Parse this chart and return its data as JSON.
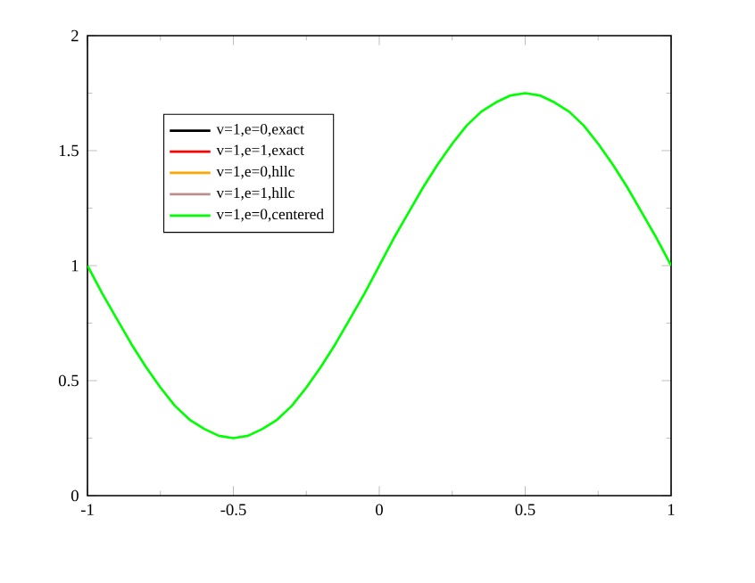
{
  "chart_data": {
    "type": "line",
    "x": [
      -1,
      -0.95,
      -0.9,
      -0.85,
      -0.8,
      -0.75,
      -0.7,
      -0.65,
      -0.6,
      -0.55,
      -0.5,
      -0.45,
      -0.4,
      -0.35,
      -0.3,
      -0.25,
      -0.2,
      -0.15,
      -0.1,
      -0.05,
      0,
      0.05,
      0.1,
      0.15,
      0.2,
      0.25,
      0.3,
      0.35,
      0.4,
      0.45,
      0.5,
      0.55,
      0.6,
      0.65,
      0.7,
      0.75,
      0.8,
      0.85,
      0.9,
      0.95,
      1
    ],
    "series": [
      {
        "name": "v=1,e=0,exact",
        "color": "#000000",
        "values": [
          null,
          null,
          null,
          null,
          null,
          null,
          null,
          null,
          null,
          null,
          null,
          null,
          null,
          null,
          null,
          null,
          null,
          null,
          null,
          null,
          null,
          null,
          null,
          null,
          null,
          null,
          null,
          null,
          null,
          null,
          null,
          null,
          null,
          null,
          null,
          null,
          null,
          null,
          null,
          null,
          null
        ]
      },
      {
        "name": "v=1,e=1,exact",
        "color": "#ff0000",
        "values": [
          null,
          null,
          null,
          null,
          null,
          null,
          null,
          null,
          null,
          null,
          null,
          null,
          null,
          null,
          null,
          null,
          null,
          null,
          null,
          null,
          null,
          null,
          null,
          null,
          null,
          null,
          null,
          null,
          null,
          null,
          null,
          null,
          null,
          null,
          null,
          null,
          null,
          null,
          null,
          null,
          null
        ]
      },
      {
        "name": "v=1,e=0,hllc",
        "color": "#ffa500",
        "values": [
          null,
          null,
          null,
          null,
          null,
          null,
          null,
          null,
          null,
          null,
          null,
          null,
          null,
          null,
          null,
          null,
          null,
          null,
          null,
          null,
          null,
          null,
          null,
          null,
          null,
          null,
          null,
          null,
          null,
          null,
          null,
          null,
          null,
          null,
          null,
          null,
          null,
          null,
          null,
          null,
          null
        ]
      },
      {
        "name": "v=1,e=1,hllc",
        "color": "#bc8f8f",
        "values": [
          null,
          null,
          null,
          null,
          null,
          null,
          null,
          null,
          null,
          null,
          null,
          null,
          null,
          null,
          null,
          null,
          null,
          null,
          null,
          null,
          null,
          null,
          null,
          null,
          null,
          null,
          null,
          null,
          null,
          null,
          null,
          null,
          null,
          null,
          null,
          null,
          null,
          null,
          null,
          null,
          null
        ]
      },
      {
        "name": "v=1,e=0,centered",
        "color": "#00ff00",
        "values": [
          1.0,
          0.88,
          0.77,
          0.66,
          0.56,
          0.47,
          0.39,
          0.33,
          0.29,
          0.26,
          0.25,
          0.26,
          0.29,
          0.33,
          0.39,
          0.47,
          0.56,
          0.66,
          0.77,
          0.88,
          1.0,
          1.12,
          1.23,
          1.34,
          1.44,
          1.53,
          1.61,
          1.67,
          1.71,
          1.74,
          1.75,
          1.74,
          1.71,
          1.67,
          1.61,
          1.53,
          1.44,
          1.34,
          1.23,
          1.12,
          1.0
        ]
      }
    ],
    "xlim": [
      -1,
      1
    ],
    "ylim": [
      0,
      2
    ],
    "xticks": [
      -1,
      -0.5,
      0,
      0.5,
      1
    ],
    "yticks": [
      0,
      0.5,
      1,
      1.5,
      2
    ],
    "legend": "top left",
    "marker": "none",
    "line_style": "solid",
    "grid": false
  }
}
